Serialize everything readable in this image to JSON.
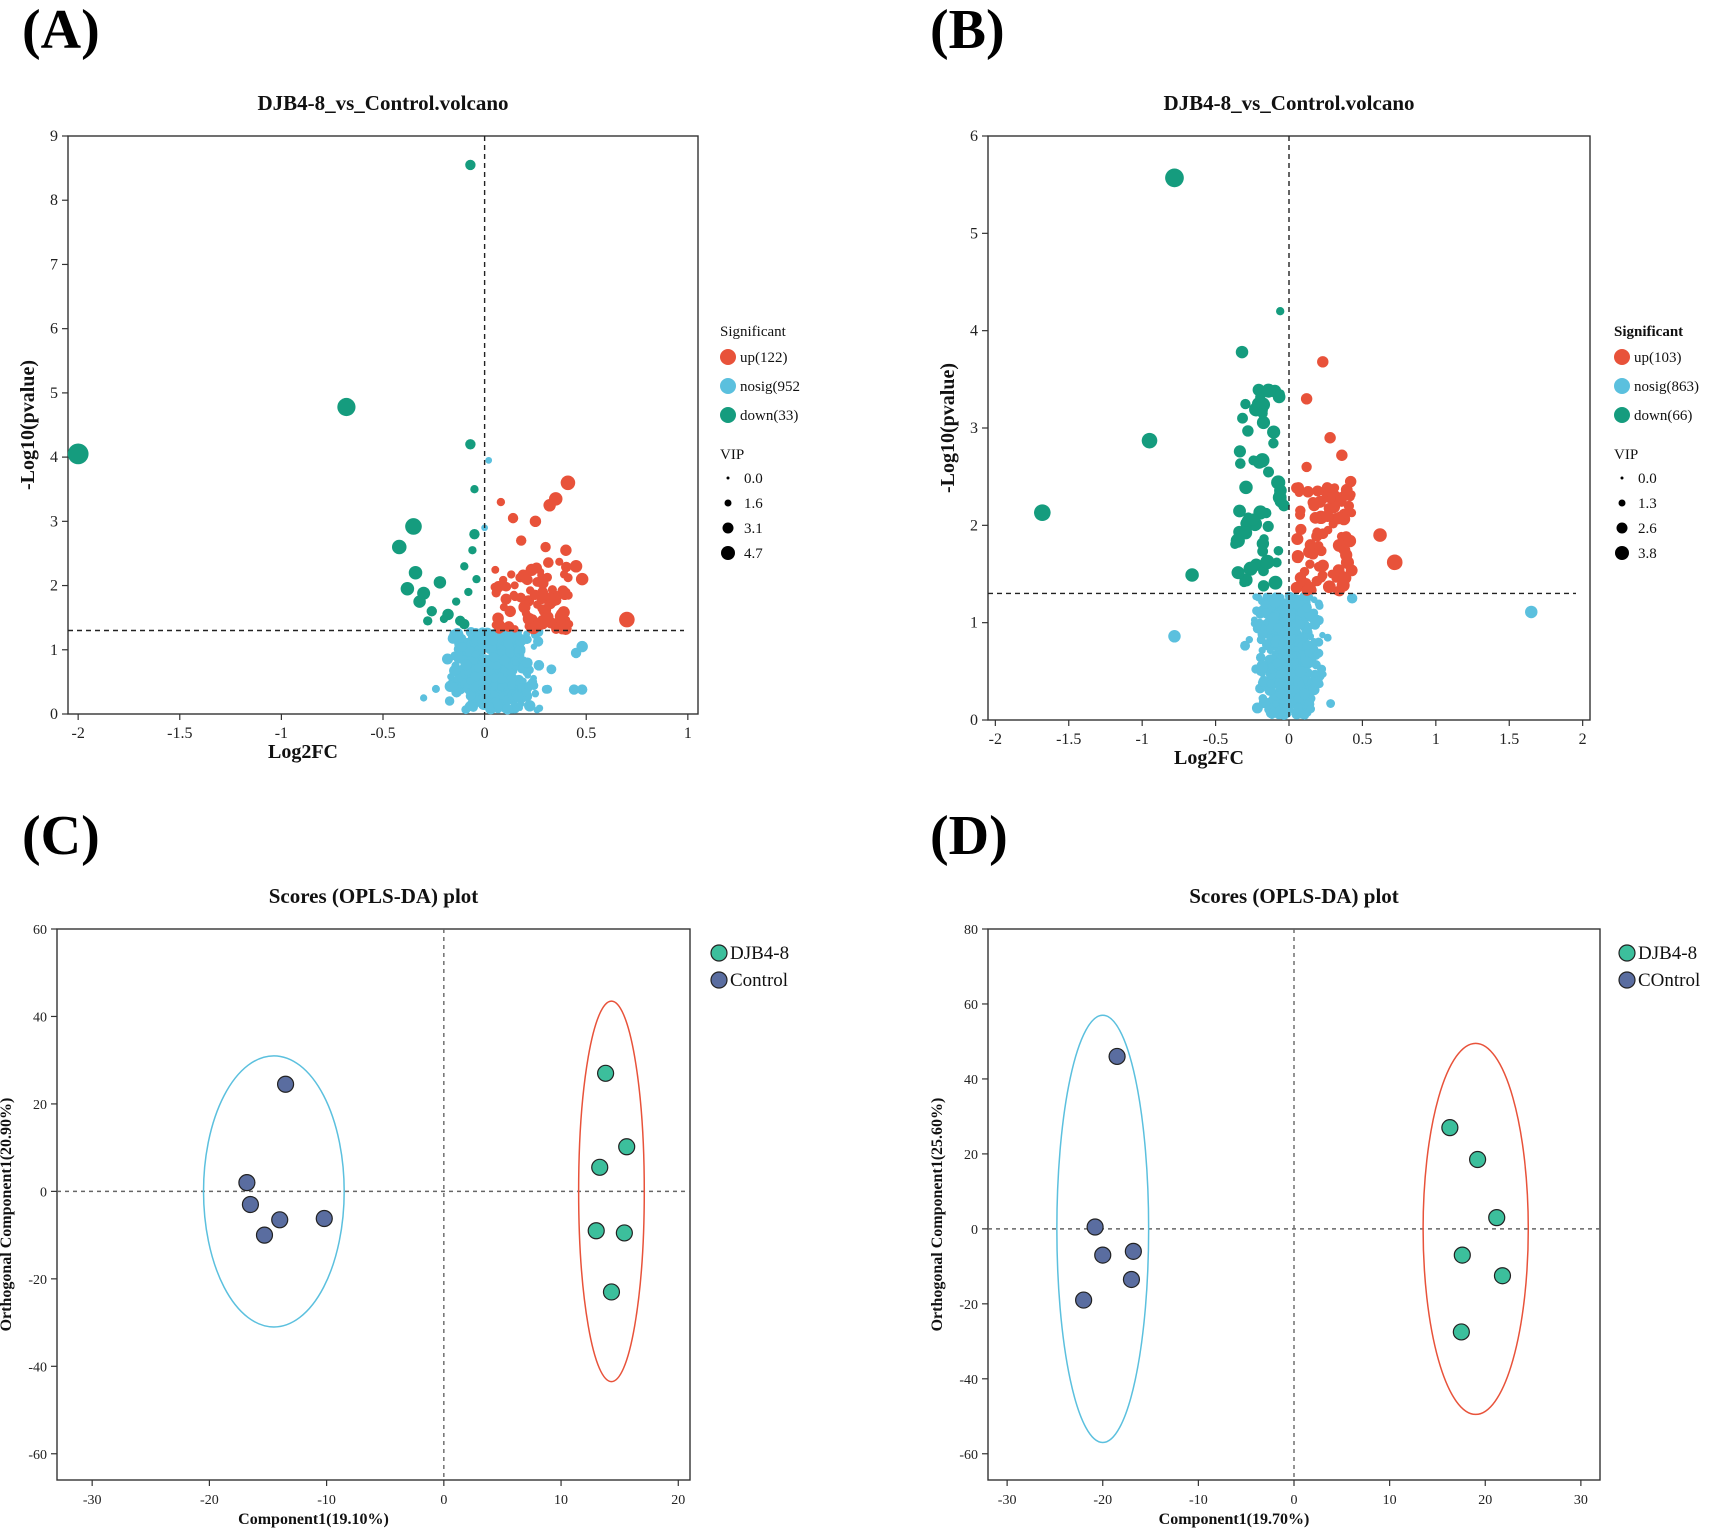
{
  "panel_labels": [
    "(A)",
    "(B)",
    "(C)",
    "(D)"
  ],
  "colors": {
    "up": "#e8523a",
    "nosig": "#5bc0de",
    "down": "#159c7e",
    "djb": "#3cbf9c",
    "control": "#5a6da0",
    "ellipse_control": "#5bc0de",
    "ellipse_djb": "#e8523a"
  },
  "chart_data": [
    {
      "id": "A",
      "type": "scatter",
      "title": "DJB4-8_vs_Control.volcano",
      "xlabel": "Log2FC",
      "ylabel": "-Log10(pvalue)",
      "xlim": [
        -2.05,
        1.05
      ],
      "ylim": [
        0,
        9
      ],
      "xticks": [
        -2,
        -1.5,
        -1,
        -0.5,
        0,
        0.5,
        1
      ],
      "yticks": [
        0,
        1,
        2,
        3,
        4,
        5,
        6,
        7,
        8,
        9
      ],
      "threshold_y": 1.3,
      "threshold_x": 0,
      "legend_title": "Significant",
      "legend": [
        {
          "label": "up(122)",
          "color": "#e8523a"
        },
        {
          "label": "nosig(952",
          "color": "#5bc0de"
        },
        {
          "label": "down(33)",
          "color": "#159c7e"
        }
      ],
      "vip_title": "VIP",
      "vip_sizes": [
        "0.0",
        "1.6",
        "3.1",
        "4.7"
      ],
      "points": {
        "down": [
          [
            -2.0,
            4.05,
            4.0
          ],
          [
            -0.68,
            4.78,
            3.5
          ],
          [
            -0.07,
            8.55,
            2.0
          ],
          [
            -0.07,
            4.2,
            2.0
          ],
          [
            -0.35,
            2.92,
            3.2
          ],
          [
            -0.42,
            2.6,
            2.8
          ],
          [
            -0.34,
            2.2,
            2.6
          ],
          [
            -0.3,
            1.88,
            2.5
          ],
          [
            -0.22,
            2.05,
            2.4
          ],
          [
            -0.38,
            1.95,
            2.6
          ],
          [
            -0.32,
            1.75,
            2.4
          ],
          [
            -0.26,
            1.6,
            2.0
          ],
          [
            -0.18,
            1.55,
            2.2
          ],
          [
            -0.12,
            1.45,
            2.0
          ],
          [
            -0.1,
            1.4,
            2.0
          ],
          [
            -0.05,
            2.8,
            2.0
          ],
          [
            -0.05,
            3.5,
            1.6
          ],
          [
            -0.1,
            2.3,
            1.6
          ],
          [
            -0.08,
            1.9,
            1.6
          ],
          [
            -0.14,
            1.75,
            1.6
          ],
          [
            -0.2,
            1.48,
            1.6
          ],
          [
            -0.28,
            1.45,
            1.8
          ],
          [
            -0.04,
            2.1,
            1.6
          ],
          [
            -0.06,
            2.55,
            1.6
          ]
        ],
        "up_region": {
          "x": [
            0.05,
            0.42
          ],
          "y": [
            1.32,
            2.4
          ],
          "n": 100,
          "r": [
            1.4,
            2.4
          ]
        },
        "up": [
          [
            0.7,
            1.47,
            3.0
          ],
          [
            0.41,
            3.6,
            2.8
          ],
          [
            0.35,
            3.35,
            2.6
          ],
          [
            0.32,
            3.25,
            2.4
          ],
          [
            0.25,
            3.0,
            2.2
          ],
          [
            0.14,
            3.05,
            2.0
          ],
          [
            0.08,
            3.3,
            1.6
          ],
          [
            0.45,
            2.3,
            2.4
          ],
          [
            0.48,
            2.1,
            2.4
          ],
          [
            0.4,
            2.55,
            2.2
          ],
          [
            0.3,
            2.6,
            2.0
          ],
          [
            0.18,
            2.7,
            2.0
          ]
        ],
        "nosig_region": {
          "x": [
            -0.3,
            0.45
          ],
          "y": [
            0.05,
            1.28
          ],
          "n": 520,
          "r": [
            1.2,
            2.2
          ],
          "cx": 0.05,
          "cy": 0.55
        },
        "nosig": [
          [
            0.48,
            0.38,
            2.0
          ],
          [
            0.44,
            0.38,
            2.0
          ],
          [
            0.48,
            1.05,
            2.2
          ],
          [
            0.45,
            0.95,
            2.0
          ],
          [
            0.02,
            3.95,
            1.3
          ],
          [
            0.0,
            2.9,
            1.3
          ],
          [
            -0.3,
            0.25,
            1.4
          ]
        ]
      }
    },
    {
      "id": "B",
      "type": "scatter",
      "title": "DJB4-8_vs_Control.volcano",
      "xlabel": "Log2FC",
      "ylabel": "-Log10(pvalue)",
      "xlim": [
        -2.05,
        2.05
      ],
      "ylim": [
        0,
        6
      ],
      "xticks": [
        -2,
        -1.5,
        -1,
        -0.5,
        0,
        0.5,
        1,
        1.5,
        2
      ],
      "yticks": [
        0,
        1,
        2,
        3,
        4,
        5,
        6
      ],
      "threshold_y": 1.3,
      "threshold_x": 0,
      "legend_title": "Significant",
      "legend": [
        {
          "label": "up(103)",
          "color": "#e8523a"
        },
        {
          "label": "nosig(863)",
          "color": "#5bc0de"
        },
        {
          "label": "down(66)",
          "color": "#159c7e"
        }
      ],
      "vip_title": "VIP",
      "vip_sizes": [
        "0.0",
        "1.3",
        "2.6",
        "3.8"
      ],
      "points": {
        "down": [
          [
            -0.78,
            5.57,
            3.6
          ],
          [
            -1.68,
            2.13,
            3.2
          ],
          [
            -0.95,
            2.87,
            3.0
          ],
          [
            -0.66,
            1.49,
            2.6
          ],
          [
            -0.32,
            3.78,
            2.4
          ],
          [
            -0.06,
            4.2,
            1.6
          ],
          [
            -0.18,
            3.15,
            2.0
          ],
          [
            -0.06,
            3.35,
            1.8
          ],
          [
            -0.28,
            2.97,
            2.2
          ]
        ],
        "down_region": {
          "x": [
            -0.38,
            -0.03
          ],
          "y": [
            1.35,
            3.4
          ],
          "n": 55,
          "r": [
            1.8,
            2.8
          ]
        },
        "up_region": {
          "x": [
            0.05,
            0.43
          ],
          "y": [
            1.32,
            2.4
          ],
          "n": 90,
          "r": [
            1.6,
            2.6
          ]
        },
        "up": [
          [
            0.72,
            1.62,
            3.0
          ],
          [
            0.62,
            1.9,
            2.6
          ],
          [
            0.23,
            3.68,
            2.2
          ],
          [
            0.12,
            3.3,
            2.2
          ],
          [
            0.36,
            2.72,
            2.2
          ],
          [
            0.28,
            2.9,
            2.2
          ],
          [
            0.42,
            2.45,
            2.2
          ],
          [
            0.12,
            2.6,
            2.0
          ]
        ],
        "nosig_region": {
          "x": [
            -0.32,
            0.45
          ],
          "y": [
            0.03,
            1.28
          ],
          "n": 520,
          "r": [
            1.2,
            2.2
          ],
          "cx": 0.0,
          "cy": 0.55
        },
        "nosig": [
          [
            1.65,
            1.11,
            2.4
          ],
          [
            -0.78,
            0.86,
            2.4
          ],
          [
            0.43,
            1.25,
            2.0
          ]
        ]
      }
    },
    {
      "id": "C",
      "type": "scatter",
      "title": "Scores (OPLS-DA) plot",
      "xlabel": "Component1(19.10%)",
      "ylabel": "Orthogonal Component1(20.90%)",
      "xlim": [
        -33,
        21
      ],
      "ylim": [
        -66,
        60
      ],
      "xticks": [
        -30,
        -20,
        -10,
        0,
        10,
        20
      ],
      "yticks": [
        -60,
        -40,
        -20,
        0,
        20,
        40,
        60
      ],
      "legend": [
        {
          "label": "DJB4-8",
          "color": "#3cbf9c"
        },
        {
          "label": "Control",
          "color": "#5a6da0"
        }
      ],
      "series": [
        {
          "name": "DJB4-8",
          "points": [
            [
              13.8,
              27
            ],
            [
              15.6,
              10.2
            ],
            [
              13.3,
              5.5
            ],
            [
              13.0,
              -9
            ],
            [
              15.4,
              -9.5
            ],
            [
              14.3,
              -23
            ]
          ],
          "ellipse": {
            "cx": 14.3,
            "cy": 0,
            "rx": 2.8,
            "ry": 43.5
          }
        },
        {
          "name": "Control",
          "points": [
            [
              -13.5,
              24.5
            ],
            [
              -16.8,
              2
            ],
            [
              -16.5,
              -3
            ],
            [
              -14.0,
              -6.5
            ],
            [
              -10.2,
              -6.2
            ],
            [
              -15.3,
              -10
            ]
          ],
          "ellipse": {
            "cx": -14.5,
            "cy": 0,
            "rx": 6,
            "ry": 31
          }
        }
      ]
    },
    {
      "id": "D",
      "type": "scatter",
      "title": "Scores (OPLS-DA) plot",
      "xlabel": "Component1(19.70%)",
      "ylabel": "Orthogonal Component1(25.60%)",
      "xlim": [
        -32,
        32
      ],
      "ylim": [
        -67,
        80
      ],
      "xticks": [
        -30,
        -20,
        -10,
        0,
        10,
        20,
        30
      ],
      "yticks": [
        -60,
        -40,
        -20,
        0,
        20,
        40,
        60,
        80
      ],
      "legend": [
        {
          "label": "DJB4-8",
          "color": "#3cbf9c"
        },
        {
          "label": "COntrol",
          "color": "#5a6da0"
        }
      ],
      "series": [
        {
          "name": "DJB4-8",
          "points": [
            [
              16.3,
              27
            ],
            [
              19.2,
              18.5
            ],
            [
              21.2,
              3
            ],
            [
              17.6,
              -7
            ],
            [
              21.8,
              -12.5
            ],
            [
              17.5,
              -27.5
            ]
          ],
          "ellipse": {
            "cx": 19.0,
            "cy": 0,
            "rx": 5.5,
            "ry": 49.5
          }
        },
        {
          "name": "COntrol",
          "points": [
            [
              -18.5,
              46
            ],
            [
              -20.8,
              0.5
            ],
            [
              -20.0,
              -7
            ],
            [
              -16.8,
              -6
            ],
            [
              -17.0,
              -13.5
            ],
            [
              -22.0,
              -19
            ]
          ],
          "ellipse": {
            "cx": -20.0,
            "cy": 0,
            "rx": 4.8,
            "ry": 57
          }
        }
      ]
    }
  ]
}
